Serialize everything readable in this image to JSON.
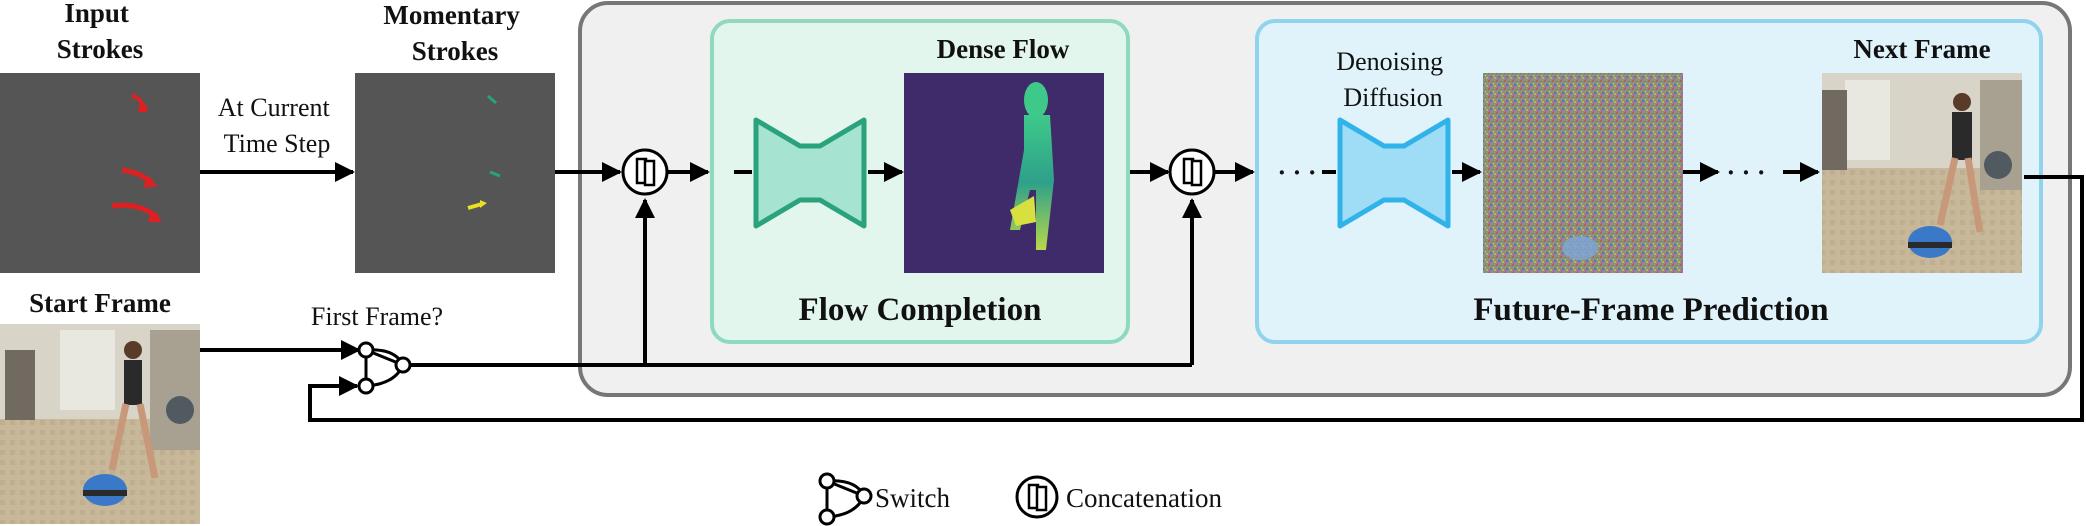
{
  "labels": {
    "input_strokes": [
      "Input",
      "Strokes"
    ],
    "momentary_strokes": [
      "Momentary",
      "Strokes"
    ],
    "at_current_time_step": [
      "At Current",
      "Time Step"
    ],
    "start_frame": "Start Frame",
    "first_frame": "First Frame?",
    "dense_flow": "Dense Flow",
    "flow_completion": "Flow Completion",
    "denoising_diffusion": [
      "Denoising",
      "Diffusion"
    ],
    "next_frame": "Next Frame",
    "future_frame_prediction": "Future-Frame Prediction",
    "ellipsis": "· · ·"
  },
  "legend": {
    "switch": "Switch",
    "concatenation": "Concatenation"
  },
  "colors": {
    "outer_box_fill": "#f0f0f0",
    "outer_box_stroke": "#777777",
    "flow_box_fill": "#e3f6ee",
    "flow_box_stroke": "#8fd9bf",
    "flow_net_fill": "#a6e3d0",
    "flow_net_stroke": "#2aa37c",
    "future_box_fill": "#e0f3fb",
    "future_box_stroke": "#8fd3ee",
    "diffusion_net_fill": "#9fdcf5",
    "diffusion_net_stroke": "#2fb3e8",
    "stroke_panel": "#555555",
    "stroke_red": "#e02020",
    "stroke_teal": "#2aa37c",
    "stroke_yellow": "#e8e020"
  }
}
